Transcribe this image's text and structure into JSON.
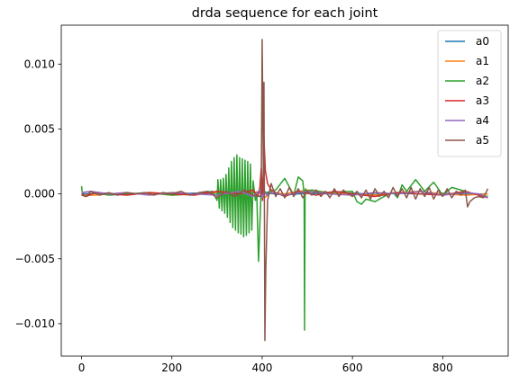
{
  "chart_data": {
    "type": "line",
    "title": "drda sequence for each joint",
    "xlabel": "",
    "ylabel": "",
    "xlim": [
      -45,
      945
    ],
    "ylim": [
      -0.0125,
      0.013
    ],
    "x_ticks": [
      0,
      200,
      400,
      600,
      800
    ],
    "x_tick_labels": [
      "0",
      "200",
      "400",
      "600",
      "800"
    ],
    "y_ticks": [
      -0.01,
      -0.005,
      0.0,
      0.005,
      0.01
    ],
    "y_tick_labels": [
      "−0.010",
      "−0.005",
      "0.000",
      "0.005",
      "0.010"
    ],
    "legend_position": "top-right",
    "grid": false,
    "series": [
      {
        "name": "a0",
        "color": "#1f77b4",
        "x": [
          0,
          50,
          100,
          150,
          200,
          250,
          300,
          350,
          400,
          450,
          500,
          550,
          600,
          650,
          700,
          750,
          800,
          850,
          900
        ],
        "y": [
          0.0,
          5e-05,
          -3e-05,
          4e-05,
          0.0,
          6e-05,
          -5e-05,
          8e-05,
          0.0001,
          -8e-05,
          5e-05,
          0.0,
          6e-05,
          -4e-05,
          5e-05,
          0.0,
          4e-05,
          -3e-05,
          0.0
        ]
      },
      {
        "name": "a1",
        "color": "#ff7f0e",
        "x": [
          0,
          30,
          60,
          100,
          150,
          200,
          250,
          300,
          350,
          380,
          395,
          405,
          420,
          450,
          500,
          550,
          600,
          650,
          700,
          750,
          800,
          850,
          900
        ],
        "y": [
          -0.0001,
          -0.0001,
          0.0,
          -5e-05,
          5e-05,
          -0.0001,
          0.0,
          0.0001,
          -0.0002,
          0.0001,
          0.0002,
          -0.0003,
          0.0001,
          0.0,
          0.0003,
          0.0001,
          0.0,
          -0.0001,
          0.0001,
          0.0002,
          0.0,
          -0.0001,
          0.0
        ]
      },
      {
        "name": "a2",
        "color": "#2ca02c",
        "x": [
          0,
          2,
          10,
          30,
          60,
          100,
          150,
          200,
          250,
          290,
          300,
          302,
          305,
          308,
          311,
          314,
          317,
          320,
          323,
          326,
          329,
          332,
          335,
          338,
          341,
          344,
          347,
          350,
          353,
          356,
          359,
          362,
          365,
          368,
          371,
          374,
          377,
          380,
          385,
          388,
          392,
          398,
          405,
          410,
          430,
          450,
          470,
          480,
          490,
          493,
          494,
          495,
          496,
          498,
          510,
          540,
          600,
          610,
          620,
          630,
          650,
          670,
          690,
          700,
          710,
          720,
          740,
          760,
          780,
          800,
          820,
          850,
          880,
          900
        ],
        "y": [
          0.0006,
          -0.0001,
          -0.0002,
          0.0001,
          -0.0001,
          0.0,
          0.0001,
          -0.0001,
          0.0,
          0.0002,
          -0.0005,
          0.0011,
          -0.0011,
          0.0011,
          -0.0013,
          0.0012,
          -0.0015,
          0.0015,
          -0.0018,
          0.002,
          -0.0022,
          0.0025,
          -0.0026,
          0.0028,
          -0.0028,
          0.003,
          -0.003,
          0.0028,
          -0.0031,
          0.0027,
          -0.0033,
          0.0026,
          -0.0032,
          0.0025,
          -0.003,
          0.0023,
          -0.0028,
          0.001,
          -0.0005,
          0.0001,
          -0.0052,
          0.0005,
          0.0002,
          0.0001,
          0.0003,
          0.0012,
          -0.0001,
          0.0013,
          0.001,
          -0.0001,
          -0.0105,
          -0.0002,
          0.0004,
          0.0002,
          0.0003,
          0.0001,
          0.0002,
          -0.0006,
          -0.0008,
          -0.0004,
          -0.0006,
          -0.0002,
          0.0001,
          -0.0003,
          0.0007,
          0.0002,
          0.0011,
          0.0002,
          0.0009,
          -0.0001,
          0.0005,
          0.0002,
          -0.0001,
          -0.0002
        ]
      },
      {
        "name": "a3",
        "color": "#d62728",
        "x": [
          0,
          10,
          30,
          60,
          100,
          150,
          200,
          250,
          300,
          350,
          380,
          390,
          395,
          398,
          401,
          404,
          407,
          412,
          420,
          430,
          450,
          480,
          520,
          560,
          600,
          650,
          700,
          750,
          800,
          850,
          880,
          900
        ],
        "y": [
          0.0,
          -0.0002,
          0.0001,
          0.0,
          -0.0001,
          0.0001,
          0.0,
          -0.0001,
          0.0002,
          0.0,
          0.0003,
          -0.0002,
          0.0005,
          0.002,
          -0.0005,
          0.0043,
          0.0018,
          0.0008,
          0.0003,
          0.0001,
          -0.0002,
          0.0002,
          -0.0001,
          0.0002,
          0.0,
          -0.0002,
          0.0001,
          0.0,
          -0.0001,
          0.0002,
          -0.0001,
          -0.0003
        ]
      },
      {
        "name": "a4",
        "color": "#9467bd",
        "x": [
          0,
          20,
          40,
          60,
          100,
          150,
          200,
          250,
          300,
          350,
          380,
          395,
          400,
          405,
          410,
          420,
          450,
          500,
          550,
          600,
          650,
          700,
          750,
          800,
          850,
          880,
          900
        ],
        "y": [
          0.0001,
          0.0002,
          0.0001,
          0.0,
          0.0001,
          -0.0001,
          0.0001,
          0.0,
          -0.0001,
          0.0002,
          -0.0002,
          0.0003,
          -0.0003,
          0.0002,
          -0.0001,
          0.0001,
          -0.0001,
          0.0002,
          0.0,
          -0.0001,
          0.0001,
          0.0,
          0.0002,
          -0.0001,
          0.0001,
          0.0,
          -0.0003
        ]
      },
      {
        "name": "a5",
        "color": "#8c564b",
        "x": [
          0,
          10,
          20,
          40,
          60,
          80,
          100,
          120,
          140,
          160,
          180,
          200,
          220,
          240,
          260,
          280,
          300,
          320,
          340,
          360,
          380,
          395,
          398,
          400,
          403,
          404,
          406,
          408,
          412,
          420,
          430,
          440,
          450,
          460,
          470,
          480,
          490,
          500,
          510,
          520,
          530,
          540,
          550,
          560,
          570,
          580,
          590,
          600,
          610,
          620,
          630,
          640,
          650,
          660,
          670,
          680,
          690,
          700,
          710,
          720,
          730,
          740,
          750,
          760,
          770,
          780,
          790,
          800,
          810,
          820,
          830,
          840,
          850,
          855,
          860,
          870,
          880,
          890,
          900
        ],
        "y": [
          -0.0001,
          -0.0002,
          0.0002,
          -0.0001,
          0.0001,
          -0.0001,
          0.0001,
          0.0,
          0.0001,
          -0.0001,
          0.0001,
          0.0,
          0.0002,
          -0.0001,
          0.0001,
          0.0002,
          -0.0003,
          0.0002,
          -0.0002,
          0.0003,
          -0.0001,
          -0.0002,
          0.0001,
          0.0119,
          0.0004,
          0.0086,
          -0.0113,
          -0.006,
          -0.0005,
          0.0008,
          -0.0002,
          0.0004,
          -0.0003,
          0.0005,
          -0.0002,
          0.0004,
          -0.0003,
          0.0002,
          -0.0001,
          0.0003,
          -0.0002,
          0.0002,
          -0.0003,
          0.0004,
          -0.0002,
          0.0003,
          0.0,
          -0.0002,
          0.0002,
          -0.0003,
          0.0003,
          -0.0004,
          0.0004,
          -0.0002,
          0.0002,
          -0.0003,
          0.0005,
          -0.0002,
          0.0004,
          -0.0003,
          0.0005,
          -0.0004,
          0.0004,
          -0.0002,
          0.0005,
          -0.0004,
          0.0003,
          -0.0002,
          0.0004,
          -0.0003,
          0.0002,
          -0.0001,
          0.0003,
          -0.001,
          -0.0006,
          -0.0003,
          -0.0002,
          -0.0003,
          0.0004
        ]
      }
    ]
  }
}
